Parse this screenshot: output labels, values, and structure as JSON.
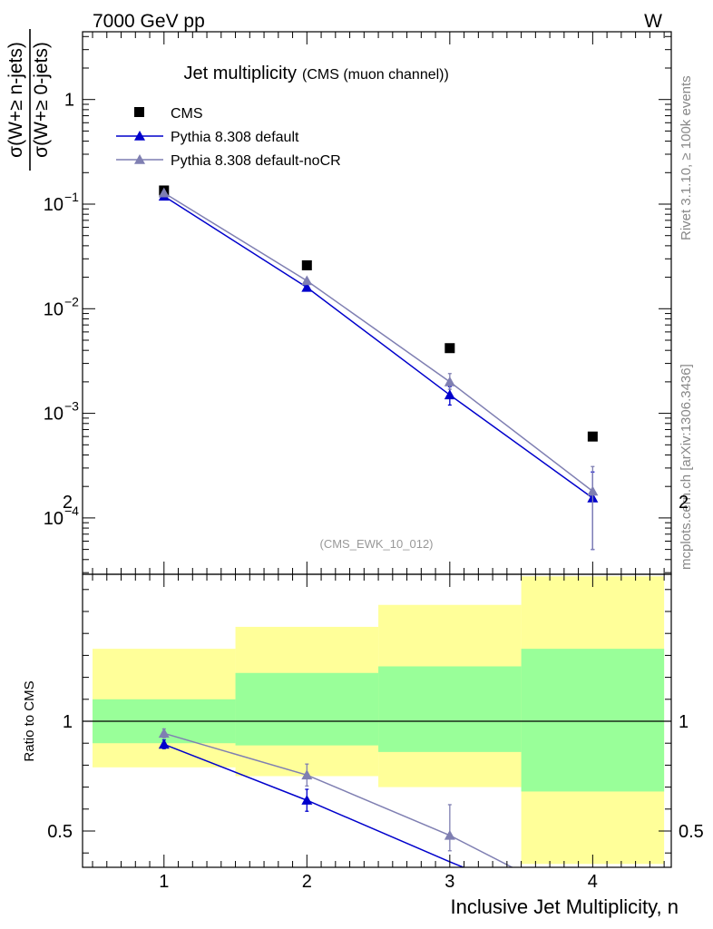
{
  "header": {
    "left": "7000 GeV pp",
    "right": "W"
  },
  "side_text": {
    "rivet": "Rivet 3.1.10, ≥ 100k events",
    "source": "mcplots.cern.ch [arXiv:1306.3436]"
  },
  "chart_data": [
    {
      "type": "scatter",
      "title": "Jet multiplicity",
      "subtitle": "(CMS (muon channel))",
      "watermark": "(CMS_EWK_10_012)",
      "ylabel_top": "σ(W+≥ n-jets)",
      "ylabel_bottom": "σ(W+≥ 0-jets)",
      "yscale": "log",
      "ylim": [
        3e-05,
        5
      ],
      "xlim": [
        0.43,
        4.55
      ],
      "legend_placement": "top-left",
      "x": [
        1,
        2,
        3,
        4
      ],
      "series": [
        {
          "name": "CMS",
          "color": "#000000",
          "marker": "square",
          "values": [
            0.135,
            0.026,
            0.0042,
            0.0006
          ]
        },
        {
          "name": "Pythia 8.308 default",
          "color": "#0000cc",
          "marker": "triangle",
          "values": [
            0.119,
            0.016,
            0.0015,
            0.000155
          ],
          "err_low": [
            0.004,
            0.0006,
            0.0003,
            0.000105
          ],
          "err_high": [
            0.004,
            0.0006,
            0.0003,
            0.00012
          ]
        },
        {
          "name": "Pythia 8.308 default-noCR",
          "color": "#7f7fb2",
          "marker": "triangle",
          "values": [
            0.128,
            0.0185,
            0.002,
            0.00018
          ],
          "err_low": [
            0.004,
            0.0006,
            0.0003,
            0.00013
          ],
          "err_high": [
            0.004,
            0.0006,
            0.0004,
            0.00013
          ]
        }
      ]
    },
    {
      "type": "scatter",
      "ylabel": "Ratio to CMS",
      "xlabel": "Inclusive Jet Multiplicity, n",
      "ylim": [
        0.35,
        2.3
      ],
      "xlim": [
        0.43,
        4.55
      ],
      "yticks": [
        "0.5",
        "1",
        "2"
      ],
      "xticks": [
        "1",
        "2",
        "3",
        "4"
      ],
      "reference_line": 1,
      "bands": {
        "bins": [
          [
            0.5,
            1.5
          ],
          [
            1.5,
            2.5
          ],
          [
            2.5,
            3.5
          ],
          [
            3.5,
            4.5
          ]
        ],
        "inner_color": "#99ff99",
        "outer_color": "#ffff99",
        "inner_low": [
          0.9,
          0.89,
          0.86,
          0.68
        ],
        "inner_high": [
          1.1,
          1.22,
          1.25,
          1.33
        ],
        "outer_low": [
          0.79,
          0.75,
          0.7,
          0.35
        ],
        "outer_high": [
          1.33,
          1.43,
          1.53,
          1.66
        ]
      },
      "series": [
        {
          "name": "Pythia 8.308 default",
          "color": "#0000cc",
          "x": [
            1,
            2,
            3.0,
            3.3
          ],
          "values": [
            0.895,
            0.64,
            0.36,
            0.28
          ],
          "err_low": [
            0.02,
            0.05,
            0,
            0
          ],
          "err_high": [
            0.02,
            0.05,
            0,
            0
          ],
          "markers": [
            true,
            true,
            false,
            false
          ]
        },
        {
          "name": "Pythia 8.308 default-noCR",
          "color": "#7f7fb2",
          "x": [
            1,
            2,
            3,
            3.45
          ],
          "values": [
            0.945,
            0.755,
            0.48,
            0.33
          ],
          "err_low": [
            0.02,
            0.05,
            0.07,
            0
          ],
          "err_high": [
            0.02,
            0.05,
            0.14,
            0
          ],
          "markers": [
            true,
            true,
            true,
            false
          ]
        }
      ]
    }
  ]
}
